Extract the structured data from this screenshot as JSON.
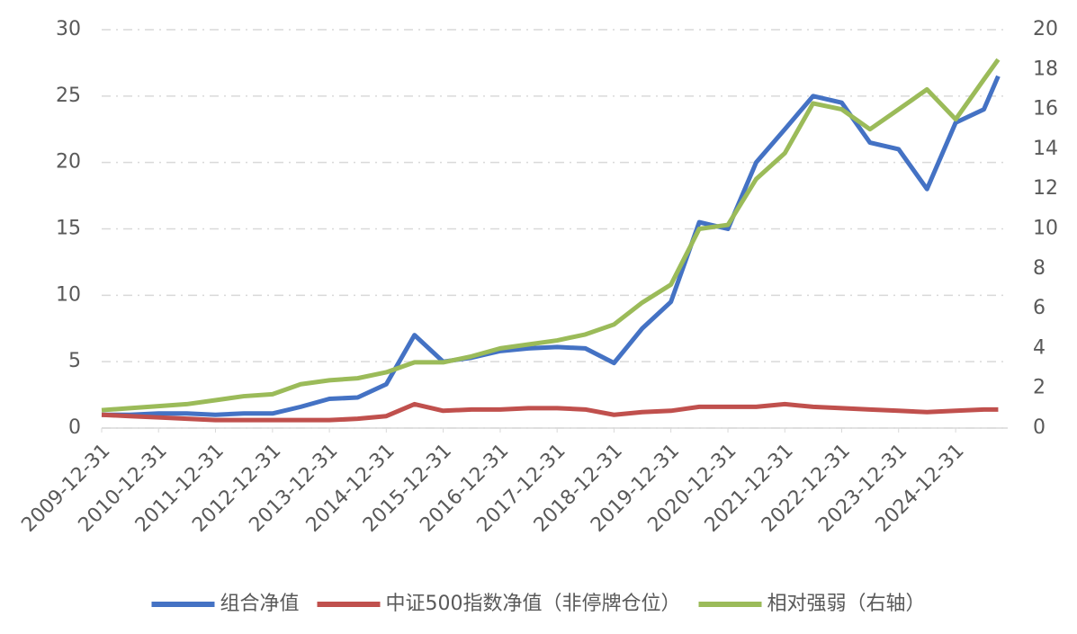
{
  "chart_data": {
    "type": "line",
    "x": [
      "2009-12-31",
      "2010-06-30",
      "2010-12-31",
      "2011-06-30",
      "2011-12-31",
      "2012-06-30",
      "2012-12-31",
      "2013-06-30",
      "2013-12-31",
      "2014-06-30",
      "2014-12-31",
      "2015-06-30",
      "2015-12-31",
      "2016-06-30",
      "2016-12-31",
      "2017-06-30",
      "2017-12-31",
      "2018-06-30",
      "2018-12-31",
      "2019-06-30",
      "2019-12-31",
      "2020-06-30",
      "2020-12-31",
      "2021-06-30",
      "2021-12-31",
      "2022-06-30",
      "2022-12-31",
      "2023-06-30",
      "2023-12-31",
      "2024-06-30",
      "2024-12-31",
      "2025-06-30",
      "2025-09-30"
    ],
    "series": [
      {
        "name": "组合净值",
        "color": "#4472c4",
        "values": [
          1.0,
          1.0,
          1.1,
          1.1,
          1.0,
          1.1,
          1.1,
          1.6,
          2.2,
          2.3,
          3.3,
          7.0,
          5.0,
          5.3,
          5.8,
          6.0,
          6.1,
          6.0,
          4.9,
          7.5,
          9.5,
          15.5,
          15.0,
          20.0,
          22.5,
          25.0,
          24.5,
          21.5,
          21.0,
          18.0,
          23.0,
          24.0,
          26.5
        ]
      },
      {
        "name": "中证500指数净值（非停牌仓位）",
        "color": "#c0504d",
        "values": [
          1.0,
          0.9,
          0.8,
          0.7,
          0.6,
          0.6,
          0.6,
          0.6,
          0.6,
          0.7,
          0.9,
          1.8,
          1.3,
          1.4,
          1.4,
          1.5,
          1.5,
          1.4,
          1.0,
          1.2,
          1.3,
          1.6,
          1.6,
          1.6,
          1.8,
          1.6,
          1.5,
          1.4,
          1.3,
          1.2,
          1.3,
          1.4,
          1.4
        ]
      },
      {
        "name": "相对强弱（右轴）",
        "color": "#9bbb59",
        "axis": "y2",
        "values": [
          0.9,
          1.0,
          1.1,
          1.2,
          1.4,
          1.6,
          1.7,
          2.2,
          2.4,
          2.5,
          2.8,
          3.3,
          3.3,
          3.6,
          4.0,
          4.2,
          4.4,
          4.7,
          5.2,
          6.3,
          7.2,
          10.0,
          10.2,
          12.5,
          13.8,
          16.3,
          16.0,
          15.0,
          16.0,
          17.0,
          15.5,
          17.5,
          18.5
        ]
      }
    ],
    "xlim": [
      "2009-12-31",
      "2025-11-30"
    ],
    "xticks": [
      "2009-12-31",
      "2010-12-31",
      "2011-12-31",
      "2012-12-31",
      "2013-12-31",
      "2014-12-31",
      "2015-12-31",
      "2016-12-31",
      "2017-12-31",
      "2018-12-31",
      "2019-12-31",
      "2020-12-31",
      "2021-12-31",
      "2022-12-31",
      "2023-12-31",
      "2024-12-31"
    ],
    "ylim": [
      0,
      30
    ],
    "yticks": [
      0,
      5,
      10,
      15,
      20,
      25,
      30
    ],
    "y2lim": [
      0,
      20
    ],
    "y2ticks": [
      0,
      2,
      4,
      6,
      8,
      10,
      12,
      14,
      16,
      18,
      20
    ],
    "grid": true,
    "legend": "bottom"
  }
}
